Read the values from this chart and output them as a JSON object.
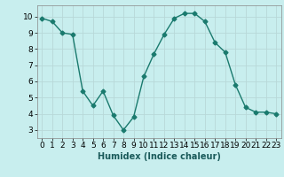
{
  "x": [
    0,
    1,
    2,
    3,
    4,
    5,
    6,
    7,
    8,
    9,
    10,
    11,
    12,
    13,
    14,
    15,
    16,
    17,
    18,
    19,
    20,
    21,
    22,
    23
  ],
  "y": [
    9.9,
    9.7,
    9.0,
    8.9,
    5.4,
    4.5,
    5.4,
    3.9,
    3.0,
    3.8,
    6.3,
    7.7,
    8.9,
    9.9,
    10.2,
    10.2,
    9.7,
    8.4,
    7.8,
    5.8,
    4.4,
    4.1,
    4.1,
    4.0
  ],
  "line_color": "#1a7a6e",
  "marker": "D",
  "marker_size": 2.5,
  "bg_color": "#c8eeee",
  "grid_color": "#b8d8d8",
  "xlabel": "Humidex (Indice chaleur)",
  "ylim": [
    2.5,
    10.7
  ],
  "xlim": [
    -0.5,
    23.5
  ],
  "yticks": [
    3,
    4,
    5,
    6,
    7,
    8,
    9,
    10
  ],
  "xticks": [
    0,
    1,
    2,
    3,
    4,
    5,
    6,
    7,
    8,
    9,
    10,
    11,
    12,
    13,
    14,
    15,
    16,
    17,
    18,
    19,
    20,
    21,
    22,
    23
  ],
  "xlabel_fontsize": 7,
  "tick_fontsize": 6.5
}
